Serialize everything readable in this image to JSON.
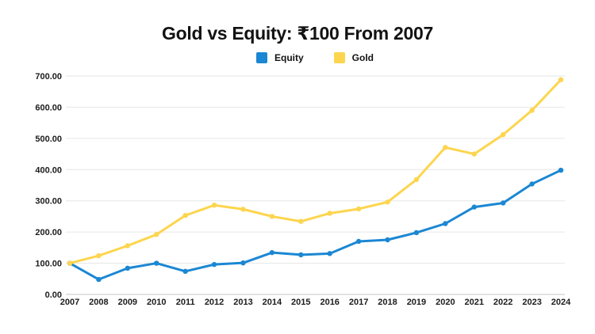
{
  "header": {
    "title": "Gold vs Equity: ₹100 From 2007"
  },
  "legend": {
    "items": [
      {
        "label": "Equity",
        "color": "#1b87d3"
      },
      {
        "label": "Gold",
        "color": "#fdd54e"
      }
    ]
  },
  "chart_data": {
    "type": "line",
    "title": "Gold vs Equity: ₹100 From 2007",
    "categories": [
      "2007",
      "2008",
      "2009",
      "2010",
      "2011",
      "2012",
      "2013",
      "2014",
      "2015",
      "2016",
      "2017",
      "2018",
      "2019",
      "2020",
      "2021",
      "2022",
      "2023",
      "2024"
    ],
    "series": [
      {
        "name": "Equity",
        "color": "#1b87d3",
        "values": [
          100,
          48,
          84,
          100,
          74,
          96,
          101,
          134,
          127,
          131,
          170,
          175,
          198,
          227,
          280,
          293,
          354,
          398
        ]
      },
      {
        "name": "Gold",
        "color": "#fdd54e",
        "values": [
          100,
          124,
          156,
          192,
          253,
          286,
          273,
          250,
          234,
          260,
          274,
          296,
          368,
          471,
          450,
          512,
          590,
          688
        ]
      }
    ],
    "xlabel": "",
    "ylabel": "",
    "ylim": [
      0,
      700
    ],
    "ytick_step": 100,
    "ytick_labels": [
      "0.00",
      "100.00",
      "200.00",
      "300.00",
      "400.00",
      "500.00",
      "600.00",
      "700.00"
    ],
    "grid": true,
    "legend_position": "top",
    "colors": {
      "gridline": "#e6e6e6",
      "zero_axis": "#c4c4c4",
      "tick_text": "#1c1c1c"
    }
  }
}
